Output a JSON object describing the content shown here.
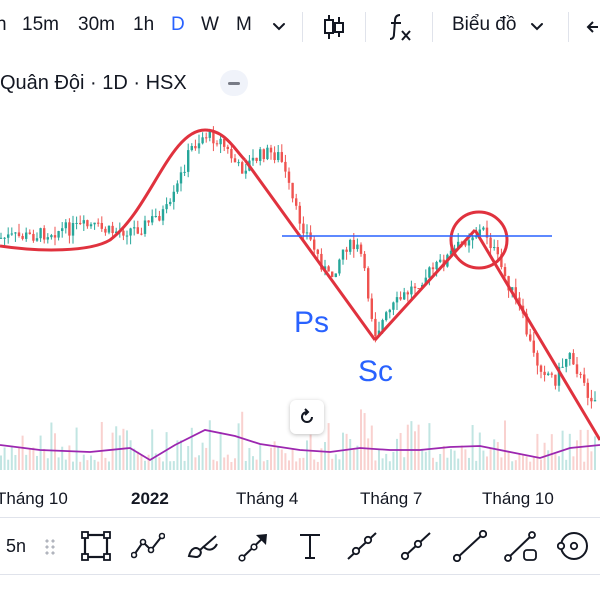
{
  "toolbar_top": {
    "timeframes": [
      {
        "label": "h",
        "active": false
      },
      {
        "label": "15m",
        "active": false
      },
      {
        "label": "30m",
        "active": false
      },
      {
        "label": "1h",
        "active": false
      },
      {
        "label": "D",
        "active": true
      },
      {
        "label": "W",
        "active": false
      },
      {
        "label": "M",
        "active": false
      }
    ],
    "chart_type_label": "Biểu đồ",
    "icons": [
      "chevron-down-icon",
      "candles-icon",
      "fx-icon",
      "chevron-down-icon",
      "undo-arrow-icon"
    ]
  },
  "symbol": {
    "title": "Quân Đội · 1D · HSX"
  },
  "chart_data": {
    "type": "candlestick",
    "x_ticks": [
      "Tháng 10",
      "2022",
      "Tháng 4",
      "Tháng 7",
      "Tháng 10"
    ],
    "annotations": [
      "Ps",
      "Sc"
    ],
    "colors": {
      "up": "#26a69a",
      "down": "#ef5350",
      "drawing": "#e0323e",
      "horizontal_line": "#2962ff",
      "volume_ma": "#9c27b0",
      "annotation_text": "#2962ff"
    }
  },
  "reset_button": {
    "icon": "reset-rotate-icon"
  },
  "drawing_toolbar": {
    "left_label": "5n",
    "tools": [
      "rectangle-icon",
      "polyline-icon",
      "brush-icon",
      "arrow-icon",
      "text-icon",
      "trend-line-icon",
      "ray-icon",
      "extended-line-icon",
      "info-line-icon",
      "circle-icon"
    ]
  }
}
